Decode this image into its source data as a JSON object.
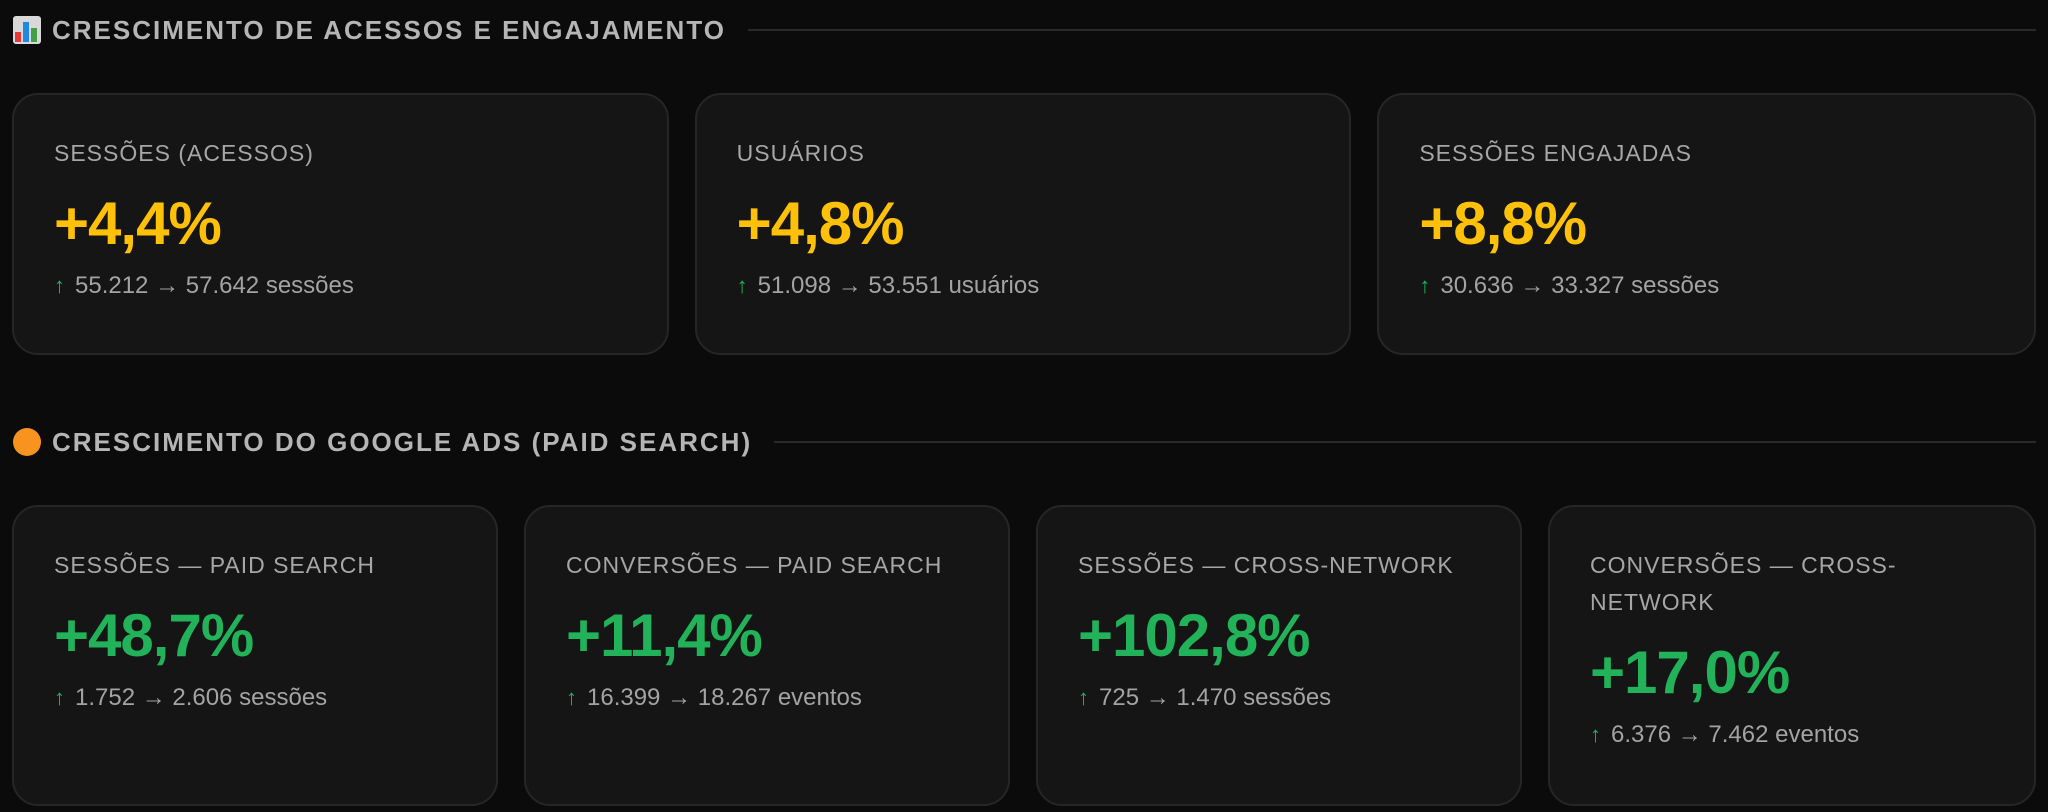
{
  "sections": [
    {
      "icon": "bar-chart-icon",
      "title": "CRESCIMENTO DE ACESSOS E ENGAJAMENTO",
      "cards": [
        {
          "label": "SESSÕES (ACESSOS)",
          "value": "+4,4%",
          "from": "55.212",
          "to": "57.642",
          "unit": "sessões"
        },
        {
          "label": "USUÁRIOS",
          "value": "+4,8%",
          "from": "51.098",
          "to": "53.551",
          "unit": "usuários"
        },
        {
          "label": "SESSÕES ENGAJADAS",
          "value": "+8,8%",
          "from": "30.636",
          "to": "33.327",
          "unit": "sessões"
        }
      ]
    },
    {
      "icon": "orange-circle-icon",
      "title": "CRESCIMENTO DO GOOGLE ADS (PAID SEARCH)",
      "cards": [
        {
          "label": "SESSÕES — PAID SEARCH",
          "value": "+48,7%",
          "from": "1.752",
          "to": "2.606",
          "unit": "sessões"
        },
        {
          "label": "CONVERSÕES — PAID SEARCH",
          "value": "+11,4%",
          "from": "16.399",
          "to": "18.267",
          "unit": "eventos"
        },
        {
          "label": "SESSÕES — CROSS-NETWORK",
          "value": "+102,8%",
          "from": "725",
          "to": "1.470",
          "unit": "sessões"
        },
        {
          "label": "CONVERSÕES — CROSS-NETWORK",
          "value": "+17,0%",
          "from": "6.376",
          "to": "7.462",
          "unit": "eventos"
        }
      ]
    }
  ],
  "symbols": {
    "up_arrow": "↑",
    "right_arrow": "→"
  },
  "colors": {
    "highlight_yellow": "#ffc107",
    "highlight_green": "#22b35a",
    "background": "#0b0b0b",
    "card": "#151515"
  }
}
